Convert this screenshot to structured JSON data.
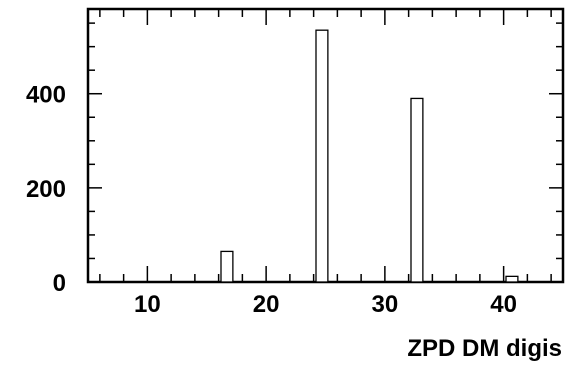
{
  "chart_data": {
    "type": "bar",
    "title": "",
    "xlabel": "ZPD DM digis",
    "ylabel": "",
    "xlim": [
      5,
      45
    ],
    "ylim": [
      0,
      580
    ],
    "x_ticks": [
      10,
      20,
      30,
      40
    ],
    "x_tick_labels": [
      "10",
      "20",
      "30",
      "40"
    ],
    "y_ticks": [
      0,
      200,
      400
    ],
    "y_tick_labels": [
      "0",
      "200",
      "400"
    ],
    "bin_width": 1,
    "bins": [
      {
        "x": 16,
        "value": 65
      },
      {
        "x": 24,
        "value": 535
      },
      {
        "x": 32,
        "value": 390
      },
      {
        "x": 40,
        "value": 12
      }
    ],
    "grid": false,
    "colors": {
      "bar_fill": "#ffffff",
      "bar_stroke": "#000000",
      "axis": "#000000"
    }
  }
}
